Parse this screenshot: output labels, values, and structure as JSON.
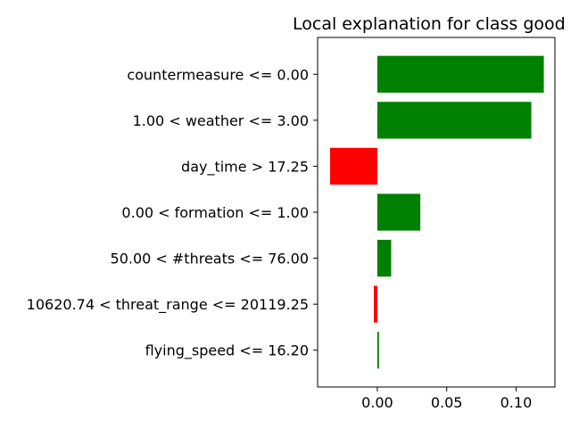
{
  "chart_data": {
    "type": "bar",
    "orientation": "horizontal",
    "title": "Local explanation for class good",
    "xlabel": "",
    "ylabel": "",
    "xlim": [
      -0.043,
      0.128
    ],
    "xticks": [
      0.0,
      0.05,
      0.1
    ],
    "xtick_labels": [
      "0.00",
      "0.05",
      "0.10"
    ],
    "grid": false,
    "legend": "none",
    "positive_color": "#008000",
    "negative_color": "#ff0000",
    "categories": [
      "countermeasure <= 0.00",
      "1.00 < weather <= 3.00",
      "day_time > 17.25",
      "0.00 < formation <= 1.00",
      "50.00 < #threats <= 76.00",
      "10620.74 < threat_range <= 20119.25",
      "flying_speed <= 16.20"
    ],
    "values": [
      0.12,
      0.111,
      -0.034,
      0.031,
      0.01,
      -0.0025,
      0.0012
    ]
  }
}
